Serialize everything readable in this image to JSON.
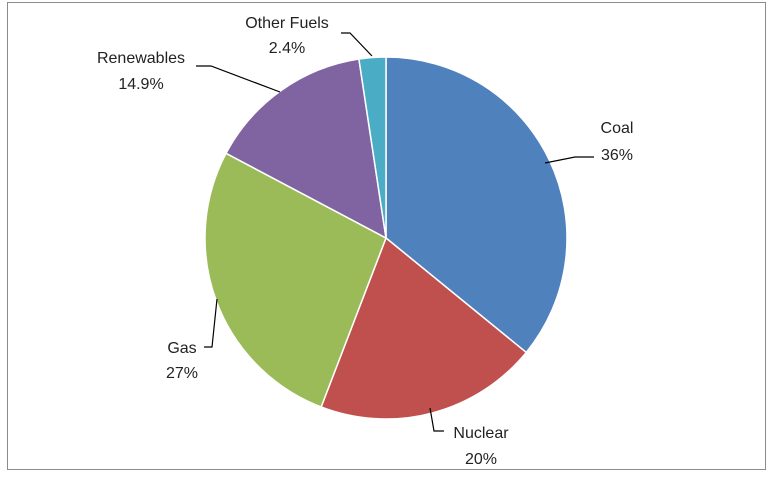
{
  "chart_data": {
    "type": "pie",
    "title": "",
    "legend": "none",
    "slices": [
      {
        "name": "Coal",
        "value": 36,
        "value_label": "36%",
        "color": "#4F81BD"
      },
      {
        "name": "Nuclear",
        "value": 20,
        "value_label": "20%",
        "color": "#C0504D"
      },
      {
        "name": "Gas",
        "value": 27,
        "value_label": "27%",
        "color": "#9BBB59"
      },
      {
        "name": "Renewables",
        "value": 14.9,
        "value_label": "14.9%",
        "color": "#8064A2"
      },
      {
        "name": "Other Fuels",
        "value": 2.4,
        "value_label": "2.4%",
        "color": "#4BACC6"
      }
    ]
  }
}
